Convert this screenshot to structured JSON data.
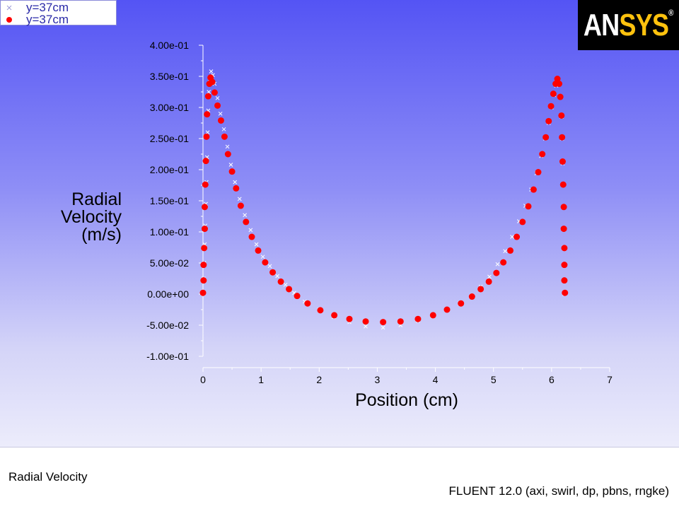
{
  "legend": [
    {
      "label": "y=37cm",
      "marker": "cross-marker",
      "color": "#ffffff"
    },
    {
      "label": "y=37cm",
      "marker": "circle-marker",
      "color": "#ff0000"
    }
  ],
  "logo": {
    "text_a": "AN",
    "text_b": "SYS",
    "reg": "®"
  },
  "footer": {
    "left": "Radial Velocity",
    "right": "FLUENT 12.0 (axi, swirl, dp, pbns, rngke)"
  },
  "chart_data": {
    "type": "scatter",
    "title": "",
    "xlabel": "Position (cm)",
    "ylabel": "Radial Velocity (m/s)",
    "xlim": [
      0,
      7
    ],
    "ylim": [
      -0.1,
      0.4
    ],
    "xticks": [
      "0",
      "1",
      "2",
      "3",
      "4",
      "5",
      "6",
      "7"
    ],
    "yticks": [
      "4.00e-01",
      "3.50e-01",
      "3.00e-01",
      "2.50e-01",
      "2.00e-01",
      "1.50e-01",
      "1.00e-01",
      "5.00e-02",
      "0.00e+00",
      "-5.00e-02",
      "-1.00e-01"
    ],
    "legend_position": "top-left",
    "grid": false,
    "series": [
      {
        "name": "y=37cm",
        "marker": "x",
        "color": "#ffffff",
        "points": [
          [
            0.0,
            0.0
          ],
          [
            0.01,
            0.025
          ],
          [
            0.02,
            0.05
          ],
          [
            0.03,
            0.08
          ],
          [
            0.04,
            0.11
          ],
          [
            0.05,
            0.145
          ],
          [
            0.06,
            0.18
          ],
          [
            0.07,
            0.22
          ],
          [
            0.08,
            0.26
          ],
          [
            0.09,
            0.295
          ],
          [
            0.1,
            0.325
          ],
          [
            0.12,
            0.345
          ],
          [
            0.14,
            0.358
          ],
          [
            0.17,
            0.352
          ],
          [
            0.2,
            0.338
          ],
          [
            0.25,
            0.315
          ],
          [
            0.3,
            0.29
          ],
          [
            0.36,
            0.265
          ],
          [
            0.42,
            0.237
          ],
          [
            0.48,
            0.208
          ],
          [
            0.55,
            0.18
          ],
          [
            0.63,
            0.153
          ],
          [
            0.72,
            0.127
          ],
          [
            0.82,
            0.103
          ],
          [
            0.92,
            0.08
          ],
          [
            1.03,
            0.06
          ],
          [
            1.15,
            0.045
          ],
          [
            1.28,
            0.029
          ],
          [
            1.42,
            0.015
          ],
          [
            1.57,
            0.002
          ],
          [
            1.75,
            -0.012
          ],
          [
            2.0,
            -0.025
          ],
          [
            2.25,
            -0.037
          ],
          [
            2.52,
            -0.045
          ],
          [
            2.8,
            -0.052
          ],
          [
            3.1,
            -0.054
          ],
          [
            3.4,
            -0.05
          ],
          [
            3.7,
            -0.043
          ],
          [
            3.95,
            -0.036
          ],
          [
            4.2,
            -0.026
          ],
          [
            4.42,
            -0.015
          ],
          [
            4.62,
            -0.003
          ],
          [
            4.78,
            0.012
          ],
          [
            4.93,
            0.028
          ],
          [
            5.07,
            0.048
          ],
          [
            5.2,
            0.069
          ],
          [
            5.32,
            0.092
          ],
          [
            5.44,
            0.117
          ],
          [
            5.55,
            0.142
          ],
          [
            5.65,
            0.168
          ],
          [
            5.74,
            0.194
          ],
          [
            5.82,
            0.222
          ],
          [
            5.89,
            0.25
          ],
          [
            5.95,
            0.275
          ],
          [
            6.0,
            0.3
          ],
          [
            6.04,
            0.32
          ],
          [
            6.08,
            0.335
          ],
          [
            6.12,
            0.338
          ],
          [
            6.15,
            0.318
          ],
          [
            6.17,
            0.285
          ],
          [
            6.18,
            0.25
          ],
          [
            6.19,
            0.21
          ],
          [
            6.2,
            0.175
          ],
          [
            6.2,
            0.14
          ],
          [
            6.21,
            0.105
          ],
          [
            6.21,
            0.075
          ],
          [
            6.21,
            0.047
          ],
          [
            6.22,
            0.022
          ],
          [
            6.22,
            0.0
          ]
        ]
      },
      {
        "name": "y=37cm",
        "marker": "circle",
        "color": "#ff0000",
        "points": [
          [
            0.0,
            0.002
          ],
          [
            0.01,
            0.022
          ],
          [
            0.01,
            0.047
          ],
          [
            0.02,
            0.074
          ],
          [
            0.03,
            0.105
          ],
          [
            0.03,
            0.14
          ],
          [
            0.04,
            0.176
          ],
          [
            0.05,
            0.214
          ],
          [
            0.06,
            0.253
          ],
          [
            0.07,
            0.289
          ],
          [
            0.09,
            0.318
          ],
          [
            0.11,
            0.338
          ],
          [
            0.13,
            0.348
          ],
          [
            0.16,
            0.341
          ],
          [
            0.2,
            0.324
          ],
          [
            0.25,
            0.303
          ],
          [
            0.31,
            0.279
          ],
          [
            0.37,
            0.253
          ],
          [
            0.43,
            0.225
          ],
          [
            0.5,
            0.197
          ],
          [
            0.57,
            0.17
          ],
          [
            0.65,
            0.142
          ],
          [
            0.74,
            0.116
          ],
          [
            0.84,
            0.092
          ],
          [
            0.95,
            0.07
          ],
          [
            1.07,
            0.051
          ],
          [
            1.2,
            0.035
          ],
          [
            1.34,
            0.02
          ],
          [
            1.48,
            0.008
          ],
          [
            1.62,
            -0.003
          ],
          [
            1.8,
            -0.015
          ],
          [
            2.02,
            -0.026
          ],
          [
            2.26,
            -0.034
          ],
          [
            2.52,
            -0.04
          ],
          [
            2.8,
            -0.044
          ],
          [
            3.1,
            -0.045
          ],
          [
            3.4,
            -0.044
          ],
          [
            3.7,
            -0.04
          ],
          [
            3.96,
            -0.034
          ],
          [
            4.2,
            -0.025
          ],
          [
            4.44,
            -0.015
          ],
          [
            4.63,
            -0.004
          ],
          [
            4.78,
            0.008
          ],
          [
            4.92,
            0.02
          ],
          [
            5.05,
            0.034
          ],
          [
            5.17,
            0.051
          ],
          [
            5.29,
            0.07
          ],
          [
            5.4,
            0.092
          ],
          [
            5.5,
            0.116
          ],
          [
            5.6,
            0.141
          ],
          [
            5.69,
            0.168
          ],
          [
            5.77,
            0.196
          ],
          [
            5.84,
            0.225
          ],
          [
            5.9,
            0.252
          ],
          [
            5.95,
            0.278
          ],
          [
            5.99,
            0.302
          ],
          [
            6.03,
            0.322
          ],
          [
            6.07,
            0.338
          ],
          [
            6.1,
            0.346
          ],
          [
            6.13,
            0.338
          ],
          [
            6.15,
            0.317
          ],
          [
            6.17,
            0.287
          ],
          [
            6.18,
            0.252
          ],
          [
            6.19,
            0.213
          ],
          [
            6.2,
            0.176
          ],
          [
            6.21,
            0.14
          ],
          [
            6.21,
            0.105
          ],
          [
            6.22,
            0.074
          ],
          [
            6.22,
            0.047
          ],
          [
            6.22,
            0.022
          ],
          [
            6.23,
            0.002
          ]
        ]
      }
    ]
  }
}
